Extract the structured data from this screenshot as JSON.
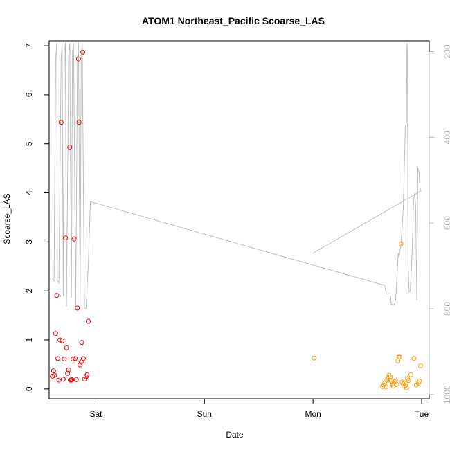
{
  "chart_data": {
    "type": "scatter",
    "title": "ATOM1 Northeast_Pacific Scoarse_LAS",
    "xlabel": "Date",
    "ylabel": "Scoarse_LAS",
    "x_unit": "day",
    "x_ticks": [
      {
        "label": "Sat",
        "value": 1
      },
      {
        "label": "Sun",
        "value": 2
      },
      {
        "label": "Mon",
        "value": 3
      },
      {
        "label": "Tue",
        "value": 4
      }
    ],
    "xlim": [
      0.57,
      4.07
    ],
    "ylim": [
      -0.2,
      7.1
    ],
    "y_ticks": [
      0,
      1,
      2,
      3,
      4,
      5,
      6,
      7
    ],
    "y2_ticks": [
      200,
      400,
      600,
      800,
      1000
    ],
    "y2lim": [
      1010,
      175
    ],
    "y2_reversed": true,
    "grid": false,
    "colors": {
      "series_1": "#ff0000",
      "series_2": "#ff9900",
      "line": "#bebebe",
      "right_axis": "#b3b3b3"
    },
    "series": [
      {
        "values": [
          [
            0.6,
            0.26
          ],
          [
            0.61,
            0.37
          ],
          [
            0.62,
            0.28
          ],
          [
            0.63,
            1.13
          ],
          [
            0.64,
            1.91
          ],
          [
            0.65,
            0.62
          ],
          [
            0.66,
            0.18
          ],
          [
            0.67,
            1.0
          ],
          [
            0.68,
            5.44
          ],
          [
            0.69,
            0.98
          ],
          [
            0.7,
            0.2
          ],
          [
            0.71,
            0.61
          ],
          [
            0.72,
            3.08
          ],
          [
            0.73,
            0.84
          ],
          [
            0.74,
            0.32
          ],
          [
            0.75,
            0.39
          ],
          [
            0.76,
            4.93
          ],
          [
            0.765,
            0.18
          ],
          [
            0.775,
            0.18
          ],
          [
            0.78,
            0.19
          ],
          [
            0.79,
            0.61
          ],
          [
            0.8,
            3.06
          ],
          [
            0.81,
            0.62
          ],
          [
            0.82,
            0.19
          ],
          [
            0.83,
            1.65
          ],
          [
            0.84,
            6.73
          ],
          [
            0.845,
            5.44
          ],
          [
            0.855,
            0.49
          ],
          [
            0.865,
            0.55
          ],
          [
            0.87,
            0.95
          ],
          [
            0.88,
            6.87
          ],
          [
            0.885,
            0.62
          ],
          [
            0.895,
            0.2
          ],
          [
            0.91,
            0.25
          ],
          [
            0.92,
            0.29
          ],
          [
            0.93,
            1.38
          ]
        ]
      },
      {
        "values": [
          [
            3.01,
            0.63
          ],
          [
            3.64,
            0.05
          ],
          [
            3.65,
            0.08
          ],
          [
            3.66,
            0.12
          ],
          [
            3.67,
            0.04
          ],
          [
            3.68,
            0.18
          ],
          [
            3.69,
            0.22
          ],
          [
            3.7,
            0.28
          ],
          [
            3.71,
            0.25
          ],
          [
            3.72,
            0.16
          ],
          [
            3.73,
            0.1
          ],
          [
            3.74,
            0.06
          ],
          [
            3.75,
            0.15
          ],
          [
            3.76,
            0.17
          ],
          [
            3.77,
            0.09
          ],
          [
            3.78,
            0.57
          ],
          [
            3.79,
            0.65
          ],
          [
            3.8,
            0.65
          ],
          [
            3.81,
            2.96
          ],
          [
            3.82,
            0.14
          ],
          [
            3.83,
            0.1
          ],
          [
            3.84,
            0.12
          ],
          [
            3.85,
            0.07
          ],
          [
            3.86,
            0.02
          ],
          [
            3.87,
            0.21
          ],
          [
            3.88,
            0.17
          ],
          [
            3.9,
            0.29
          ],
          [
            3.93,
            0.62
          ],
          [
            3.95,
            0.08
          ],
          [
            3.97,
            0.12
          ],
          [
            3.98,
            0.16
          ],
          [
            3.99,
            0.47
          ]
        ]
      }
    ],
    "line_series": {
      "values": [
        [
          0.6,
          730
        ],
        [
          0.615,
          735
        ],
        [
          0.63,
          220
        ],
        [
          0.64,
          180
        ],
        [
          0.645,
          735
        ],
        [
          0.66,
          740
        ],
        [
          0.68,
          220
        ],
        [
          0.69,
          180
        ],
        [
          0.7,
          770
        ],
        [
          0.71,
          200
        ],
        [
          0.72,
          180
        ],
        [
          0.73,
          795
        ],
        [
          0.75,
          210
        ],
        [
          0.76,
          180
        ],
        [
          0.775,
          775
        ],
        [
          0.785,
          200
        ],
        [
          0.795,
          180
        ],
        [
          0.815,
          795
        ],
        [
          0.83,
          230
        ],
        [
          0.84,
          180
        ],
        [
          0.855,
          790
        ],
        [
          0.865,
          210
        ],
        [
          0.875,
          180
        ],
        [
          0.895,
          800
        ],
        [
          0.91,
          800
        ],
        [
          0.93,
          700
        ],
        [
          0.95,
          550
        ],
        [
          3.65,
          745
        ],
        [
          3.66,
          745
        ],
        [
          3.675,
          765
        ],
        [
          3.71,
          765
        ],
        [
          3.72,
          790
        ],
        [
          3.75,
          790
        ],
        [
          3.76,
          780
        ],
        [
          3.775,
          715
        ],
        [
          3.785,
          670
        ],
        [
          3.79,
          680
        ],
        [
          3.81,
          650
        ],
        [
          3.83,
          570
        ],
        [
          3.85,
          375
        ],
        [
          3.86,
          365
        ],
        [
          3.865,
          180
        ],
        [
          3.87,
          200
        ],
        [
          3.875,
          700
        ],
        [
          3.885,
          760
        ],
        [
          3.895,
          760
        ],
        [
          3.905,
          710
        ],
        [
          3.915,
          650
        ],
        [
          3.925,
          550
        ],
        [
          3.935,
          530
        ],
        [
          3.945,
          560
        ],
        [
          3.955,
          780
        ],
        [
          3.965,
          470
        ],
        [
          3.975,
          480
        ],
        [
          3.985,
          520
        ],
        [
          3.995,
          525
        ],
        [
          3.0,
          670
        ]
      ]
    }
  }
}
